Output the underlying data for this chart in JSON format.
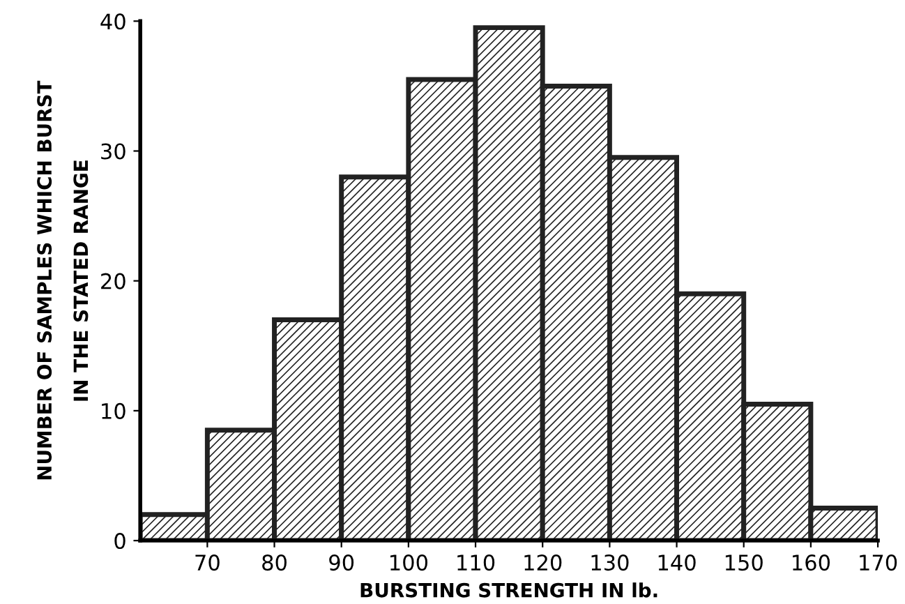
{
  "chart_data": {
    "type": "histogram",
    "xlabel": "BURSTING STRENGTH IN lb.",
    "ylabel": "NUMBER OF SAMPLES WHICH BURST\nIN THE STATED RANGE",
    "bins": [
      60,
      70,
      80,
      90,
      100,
      110,
      120,
      130,
      140,
      150,
      160,
      170
    ],
    "values": [
      2,
      8.5,
      17,
      28,
      35.5,
      39.5,
      35,
      29.5,
      19,
      10.5,
      2.5
    ],
    "color": "#222222",
    "xlim": [
      60,
      170
    ],
    "xticks": [
      70,
      80,
      90,
      100,
      110,
      120,
      130,
      140,
      150,
      160,
      170
    ],
    "ylim": [
      0,
      40
    ],
    "yticks": [
      0,
      10,
      20,
      30,
      40
    ],
    "grid": false
  }
}
